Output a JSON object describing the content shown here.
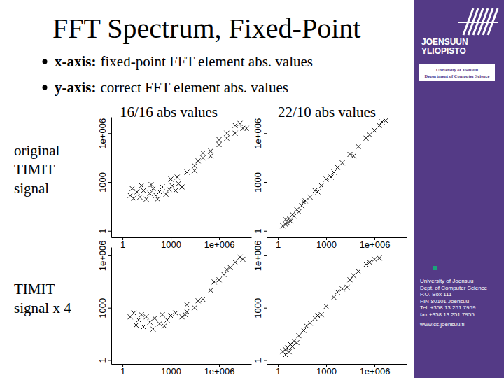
{
  "title": "FFT Spectrum, Fixed-Point",
  "bullets": [
    {
      "term": "x-axis:",
      "text": "fixed-point FFT element abs. values"
    },
    {
      "term": "y-axis:",
      "text": "correct FFT element abs. values"
    }
  ],
  "column_labels": [
    "16/16 abs values",
    "22/10 abs values"
  ],
  "row_labels": [
    [
      "original",
      "TIMIT",
      "signal"
    ],
    [
      "TIMIT",
      "signal x 4"
    ]
  ],
  "sidebar": {
    "logo": [
      "JOENSUUN",
      "YLIOPISTO"
    ],
    "caption": [
      "University of Joensuu",
      "Department of Computer Science"
    ],
    "contact": [
      "University of Joensuu",
      "Dept. of Computer Science",
      "P.O. Box 111",
      "FIN-80101 Joensuu",
      "Tel. +358 13 251 7959",
      "fax +358 13 251 7955",
      "www.cs.joensuu.fi"
    ]
  },
  "chart_data": [
    {
      "type": "scatter",
      "log": true,
      "marker": "x",
      "color": "#000000",
      "xlim": [
        0.2,
        100000000
      ],
      "ylim": [
        0.4,
        10000000
      ],
      "xticks": [
        1,
        1000,
        {
          "value": 1000000,
          "label": "1e+006"
        }
      ],
      "yticks": [
        1,
        1000,
        {
          "value": 1000000,
          "label": "1e+006"
        }
      ],
      "x": [
        3,
        5,
        8,
        12,
        20,
        30,
        50,
        80,
        120,
        200,
        300,
        500,
        800,
        1200,
        2000,
        3000,
        5000,
        4,
        15,
        60,
        150,
        1000,
        2500,
        10000,
        30000,
        100000,
        300000,
        1000000,
        3000000,
        10000000,
        30000000,
        50000000,
        100000,
        1000000,
        10000000,
        30000,
        300000,
        3000000,
        20000000,
        50000
      ],
      "values": [
        150,
        100,
        250,
        120,
        300,
        90,
        200,
        400,
        150,
        250,
        500,
        180,
        350,
        600,
        300,
        800,
        500,
        400,
        600,
        700,
        90,
        1500,
        2000,
        4000,
        10000,
        30000,
        80000,
        200000,
        500000,
        1000000,
        2000000,
        2000000,
        60000,
        400000,
        3000000,
        5000,
        40000,
        1000000,
        4000000,
        20000
      ]
    },
    {
      "type": "scatter",
      "log": true,
      "marker": "x",
      "color": "#000000",
      "xlim": [
        0.2,
        100000000
      ],
      "ylim": [
        0.4,
        10000000
      ],
      "xticks": [
        1,
        1000,
        {
          "value": 1000000,
          "label": "1e+006"
        }
      ],
      "yticks": [
        1,
        1000,
        {
          "value": 1000000,
          "label": "1e+006"
        }
      ],
      "x": [
        2,
        3,
        4,
        3,
        5,
        8,
        10,
        15,
        30,
        50,
        100,
        200,
        500,
        1000,
        3000,
        10000,
        30000,
        100000,
        300000,
        1000000,
        2000000,
        3000000,
        5000000,
        20,
        300,
        5000,
        50000,
        500000,
        40,
        2000,
        6
      ],
      "values": [
        2,
        2.5,
        3,
        5,
        6,
        10,
        8,
        20,
        35,
        70,
        120,
        300,
        600,
        1500,
        4000,
        15000,
        50000,
        150000,
        500000,
        1500000,
        3000000,
        5000000,
        6000000,
        15,
        250,
        8000,
        40000,
        800000,
        60,
        2000,
        4
      ]
    },
    {
      "type": "scatter",
      "log": true,
      "marker": "x",
      "color": "#000000",
      "xlim": [
        0.2,
        100000000
      ],
      "ylim": [
        0.6,
        3000000
      ],
      "xticks": [
        1,
        1000,
        {
          "value": 1000000,
          "label": "1e+006"
        }
      ],
      "yticks": [
        1,
        1000,
        {
          "value": 1000000,
          "label": "1e+006"
        }
      ],
      "x": [
        7,
        10,
        20,
        30,
        50,
        100,
        200,
        300,
        600,
        1000,
        2000,
        5000,
        10000,
        3,
        5,
        15,
        80,
        400,
        30000,
        100000,
        300000,
        1000000,
        3000000,
        10000000,
        30000000,
        10000,
        50000,
        500000,
        2000000,
        5000000,
        20000000,
        8000
      ],
      "values": [
        100,
        200,
        80,
        300,
        150,
        250,
        120,
        400,
        200,
        350,
        500,
        300,
        600,
        300,
        500,
        400,
        60,
        90,
        1000,
        3000,
        10000,
        40000,
        150000,
        400000,
        600000,
        1500,
        2500,
        30000,
        80000,
        200000,
        800000,
        400
      ]
    },
    {
      "type": "scatter",
      "log": true,
      "marker": "x",
      "color": "#000000",
      "xlim": [
        0.2,
        100000000
      ],
      "ylim": [
        0.6,
        3000000
      ],
      "xticks": [
        1,
        1000,
        {
          "value": 1000000,
          "label": "1e+006"
        }
      ],
      "yticks": [
        1,
        1000,
        {
          "value": 1000000,
          "label": "1e+006"
        }
      ],
      "x": [
        2,
        3,
        4,
        5,
        6,
        10,
        8,
        20,
        40,
        100,
        300,
        1000,
        3000,
        10000,
        30000,
        100000,
        300000,
        1000000,
        2000000,
        15,
        60,
        500,
        5000,
        50000,
        500000,
        3,
        200,
        20000
      ],
      "values": [
        3,
        4,
        5,
        3,
        8,
        12,
        6,
        25,
        50,
        130,
        350,
        1200,
        4000,
        12000,
        40000,
        120000,
        300000,
        600000,
        700000,
        10,
        90,
        400,
        8000,
        70000,
        400000,
        2,
        250,
        15000
      ]
    }
  ]
}
